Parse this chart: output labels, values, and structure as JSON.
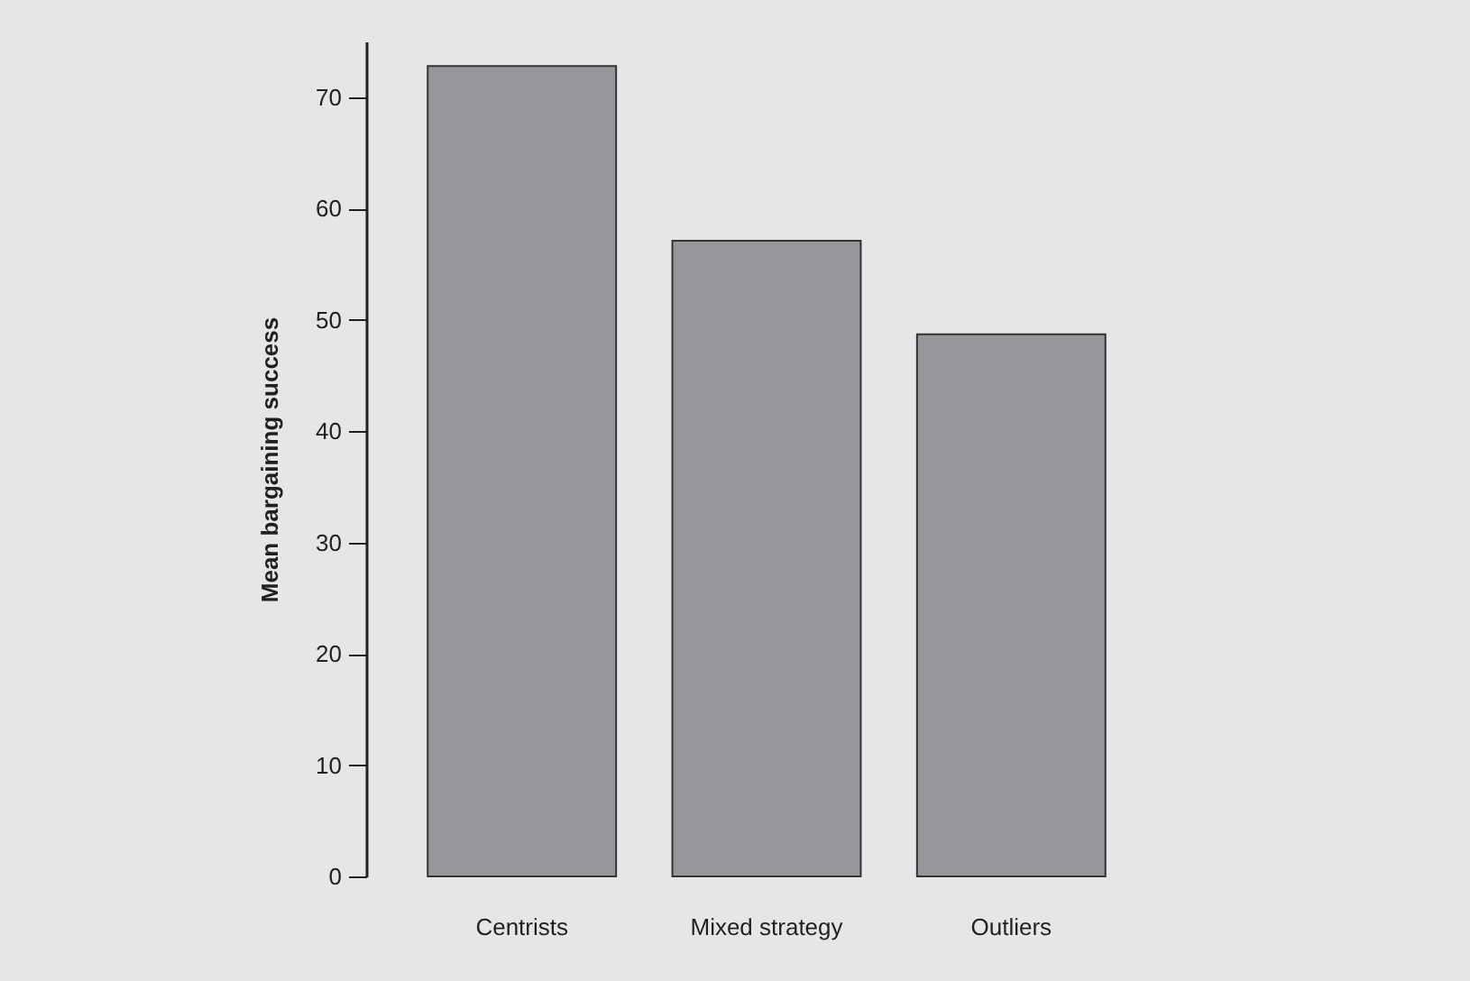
{
  "chart_data": {
    "type": "bar",
    "ylabel": "Mean bargaining success",
    "categories": [
      "Centrists",
      "Mixed strategy",
      "Outliers"
    ],
    "values": [
      72.8,
      57.1,
      48.7
    ],
    "color": "#96979a",
    "ylim": [
      0,
      75
    ],
    "yticks": [
      0,
      10,
      20,
      30,
      40,
      50,
      60,
      70
    ],
    "grid": false
  }
}
